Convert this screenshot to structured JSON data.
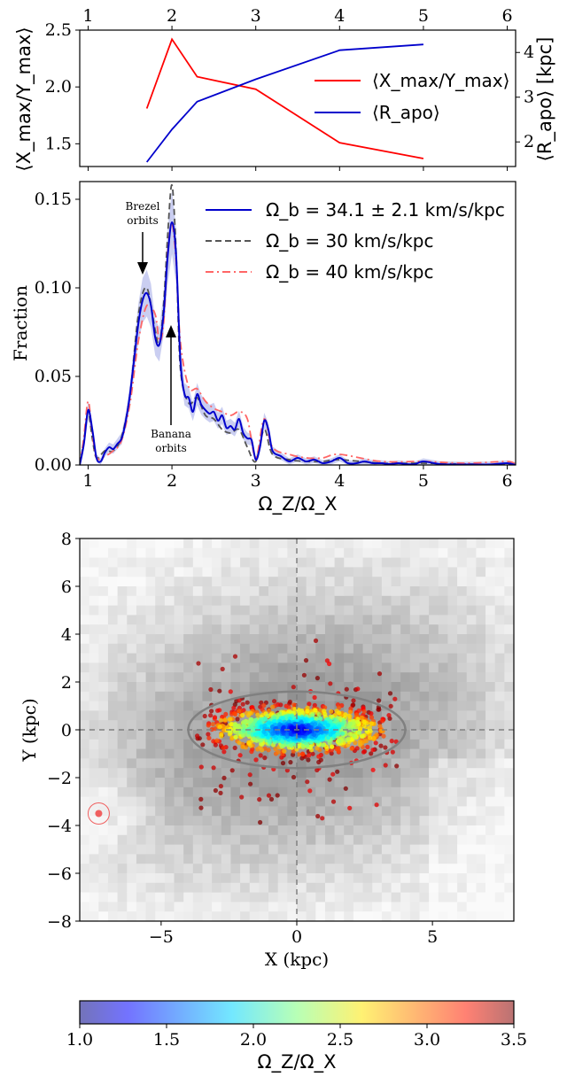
{
  "chart_data": [
    {
      "type": "line",
      "panel": "top",
      "xlim": [
        0.9,
        6.1
      ],
      "x_ticks": [
        "1",
        "2",
        "3",
        "4",
        "5",
        "6"
      ],
      "ylabel_left": "⟨X_max/Y_max⟩",
      "ylabel_right": "⟨R_apo⟩ [kpc]",
      "ylim_left": [
        1.3,
        2.5
      ],
      "yticks_left": [
        "1.5",
        "2.0",
        "2.5"
      ],
      "ylim_right": [
        1.45,
        4.5
      ],
      "yticks_right": [
        "2",
        "3",
        "4"
      ],
      "legend_position": "center-right",
      "series": [
        {
          "name": "⟨X_max/Y_max⟩",
          "axis": "left",
          "color": "#ff0000",
          "x": [
            1.7,
            2.0,
            2.3,
            3.0,
            4.0,
            5.0
          ],
          "y": [
            1.81,
            2.42,
            2.09,
            1.98,
            1.51,
            1.37
          ]
        },
        {
          "name": "⟨R_apo⟩",
          "axis": "right",
          "color": "#0000cc",
          "x": [
            1.7,
            2.0,
            2.3,
            3.0,
            4.0,
            5.0
          ],
          "y": [
            1.55,
            2.28,
            2.9,
            3.4,
            4.05,
            4.18
          ]
        }
      ]
    },
    {
      "type": "line",
      "panel": "middle",
      "xlabel": "Ω_Z/Ω_X",
      "ylabel": "Fraction",
      "xlim": [
        0.9,
        6.1
      ],
      "ylim": [
        0.0,
        0.16
      ],
      "x_ticks": [
        "1",
        "2",
        "3",
        "4",
        "5",
        "6"
      ],
      "y_ticks": [
        "0.00",
        "0.05",
        "0.10",
        "0.15"
      ],
      "legend_position": "top-right",
      "annotations": [
        {
          "text_lines": [
            "Brezel",
            "orbits"
          ],
          "x": 1.7,
          "y": 0.102
        },
        {
          "text_lines": [
            "Banana",
            "orbits"
          ],
          "x": 2.0,
          "y": 0.075
        }
      ],
      "series": [
        {
          "name": "Ω_b = 34.1 ± 2.1 km/s/kpc",
          "color": "#0000cc",
          "style": "solid",
          "band_color": "#a7aee8",
          "x": [
            0.9,
            0.95,
            1.0,
            1.05,
            1.1,
            1.15,
            1.2,
            1.25,
            1.3,
            1.35,
            1.4,
            1.45,
            1.5,
            1.55,
            1.6,
            1.65,
            1.7,
            1.75,
            1.8,
            1.85,
            1.9,
            1.95,
            2.0,
            2.05,
            2.1,
            2.15,
            2.2,
            2.25,
            2.3,
            2.35,
            2.4,
            2.45,
            2.5,
            2.55,
            2.6,
            2.65,
            2.7,
            2.75,
            2.8,
            2.85,
            2.9,
            2.95,
            3.0,
            3.05,
            3.1,
            3.15,
            3.2,
            3.3,
            3.4,
            3.5,
            3.6,
            3.7,
            3.8,
            3.9,
            4.0,
            4.1,
            4.2,
            4.3,
            4.4,
            4.5,
            4.6,
            4.7,
            4.8,
            4.9,
            5.0,
            5.2,
            5.4,
            5.6,
            5.8,
            6.0,
            6.1
          ],
          "y": [
            0.0,
            0.012,
            0.031,
            0.02,
            0.004,
            0.002,
            0.007,
            0.01,
            0.009,
            0.012,
            0.015,
            0.025,
            0.04,
            0.06,
            0.08,
            0.093,
            0.097,
            0.09,
            0.072,
            0.068,
            0.085,
            0.118,
            0.137,
            0.118,
            0.06,
            0.04,
            0.038,
            0.03,
            0.04,
            0.034,
            0.031,
            0.029,
            0.03,
            0.025,
            0.028,
            0.021,
            0.022,
            0.02,
            0.026,
            0.018,
            0.015,
            0.014,
            0.003,
            0.01,
            0.025,
            0.02,
            0.008,
            0.005,
            0.002,
            0.004,
            0.002,
            0.003,
            0.001,
            0.002,
            0.004,
            0.001,
            0.001,
            0.002,
            0.001,
            0.001,
            0.0005,
            0.001,
            0.0005,
            0.0005,
            0.002,
            0.0005,
            0.0003,
            0.0003,
            0.0003,
            0.001,
            0.0
          ]
        },
        {
          "name": "Ω_b = 30 km/s/kpc",
          "color": "#555555",
          "style": "dashed",
          "x": [
            0.9,
            0.95,
            1.0,
            1.05,
            1.1,
            1.2,
            1.3,
            1.4,
            1.5,
            1.6,
            1.7,
            1.8,
            1.85,
            1.9,
            1.95,
            2.0,
            2.05,
            2.1,
            2.2,
            2.3,
            2.4,
            2.5,
            2.6,
            2.7,
            2.8,
            2.9,
            3.0,
            3.1,
            3.2,
            3.4,
            3.6,
            3.8,
            4.0,
            4.5,
            5.0,
            5.5,
            6.1
          ],
          "y": [
            0.0,
            0.014,
            0.03,
            0.015,
            0.004,
            0.008,
            0.008,
            0.016,
            0.04,
            0.085,
            0.1,
            0.076,
            0.068,
            0.09,
            0.13,
            0.158,
            0.12,
            0.055,
            0.035,
            0.038,
            0.028,
            0.026,
            0.02,
            0.018,
            0.02,
            0.01,
            0.002,
            0.02,
            0.006,
            0.003,
            0.002,
            0.002,
            0.003,
            0.001,
            0.001,
            0.0005,
            0.0
          ]
        },
        {
          "name": "Ω_b = 40 km/s/kpc",
          "color": "#ff6666",
          "style": "dashdot",
          "x": [
            0.9,
            0.95,
            1.0,
            1.05,
            1.1,
            1.2,
            1.3,
            1.4,
            1.5,
            1.6,
            1.7,
            1.8,
            1.85,
            1.9,
            1.95,
            2.0,
            2.05,
            2.1,
            2.2,
            2.3,
            2.4,
            2.5,
            2.6,
            2.7,
            2.8,
            2.9,
            3.0,
            3.1,
            3.2,
            3.4,
            3.6,
            3.8,
            4.0,
            4.5,
            5.0,
            5.5,
            6.0,
            6.1
          ],
          "y": [
            0.0,
            0.016,
            0.036,
            0.018,
            0.004,
            0.005,
            0.008,
            0.014,
            0.035,
            0.07,
            0.09,
            0.085,
            0.07,
            0.08,
            0.12,
            0.136,
            0.115,
            0.07,
            0.044,
            0.043,
            0.036,
            0.032,
            0.03,
            0.028,
            0.03,
            0.026,
            0.004,
            0.026,
            0.01,
            0.006,
            0.004,
            0.004,
            0.006,
            0.002,
            0.002,
            0.001,
            0.002,
            0.0
          ]
        }
      ]
    },
    {
      "type": "scatter",
      "panel": "bottom",
      "xlabel": "X (kpc)",
      "ylabel": "Y (kpc)",
      "xlim": [
        -8,
        8
      ],
      "ylim": [
        -8,
        8
      ],
      "x_ticks": [
        "−5",
        "0",
        "5"
      ],
      "y_ticks": [
        "−8",
        "−6",
        "−4",
        "−2",
        "0",
        "2",
        "4",
        "6",
        "8"
      ],
      "background": "grayscale 2D density histogram",
      "ellipse": {
        "center": [
          0,
          0
        ],
        "semi_x": 4.0,
        "semi_y": 1.6,
        "color": "#808080"
      },
      "reference_lines": {
        "x": 0,
        "y": 0,
        "style": "dashed",
        "color": "#808080"
      },
      "sun_marker": {
        "x": -7.3,
        "y": -3.5,
        "color": "#f06060"
      },
      "points_color_key": "Ω_Z/Ω_X",
      "points_summary": "≈1000 stars clustered within the ellipse; low Ω_Z/Ω_X (blue) near the centre, high values (red/dark red) toward the outskirts and beyond the ellipse"
    },
    {
      "type": "colorbar",
      "panel": "colorbar",
      "label": "Ω_Z/Ω_X",
      "range": [
        1.0,
        3.5
      ],
      "ticks": [
        "1.0",
        "1.5",
        "2.0",
        "2.5",
        "3.0",
        "3.5"
      ],
      "colormap": "jet (semi-transparent)"
    }
  ]
}
